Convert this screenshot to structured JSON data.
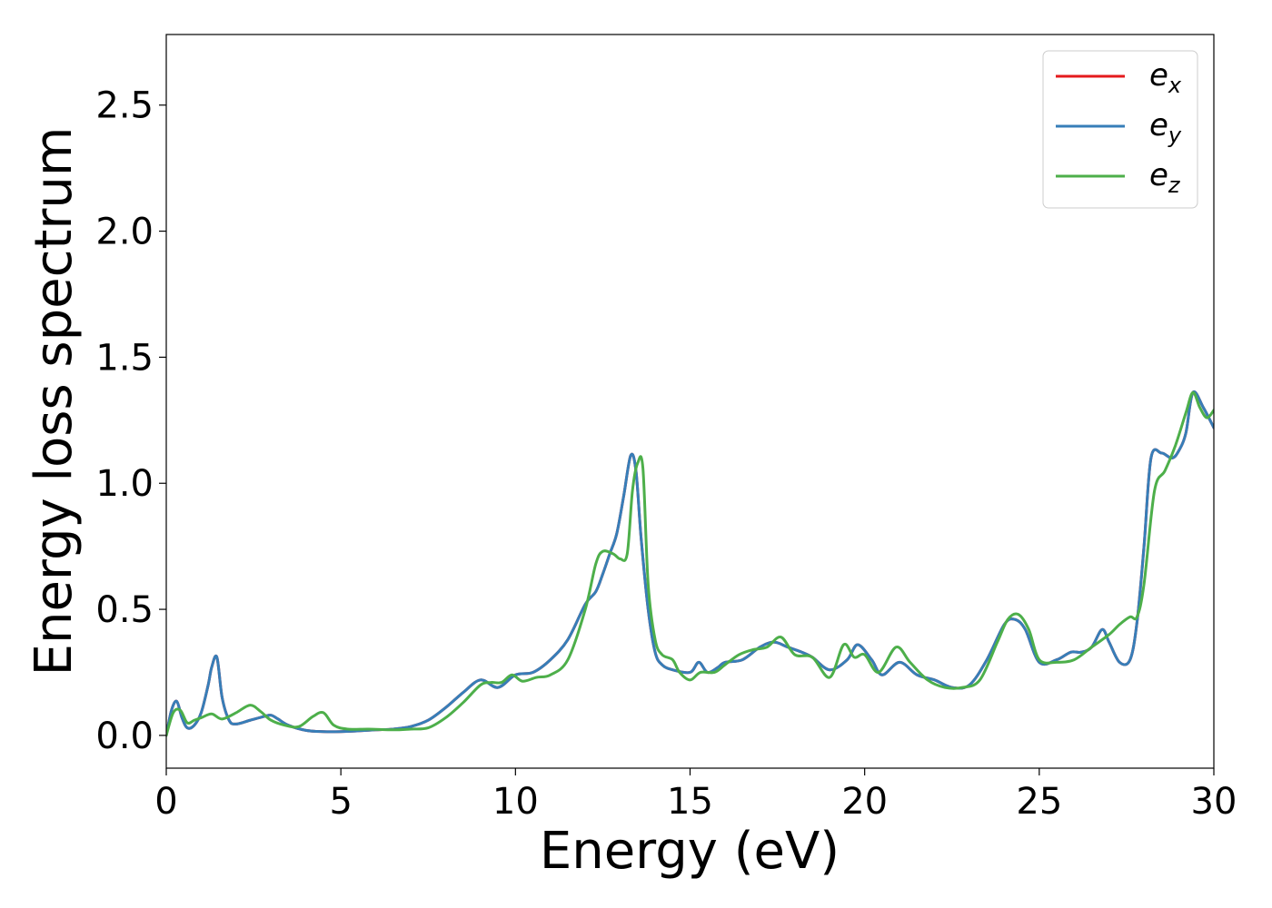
{
  "chart_data": {
    "type": "line",
    "xlabel": "Energy (eV)",
    "ylabel": "Energy loss spectrum",
    "xlim": [
      0,
      30
    ],
    "ylim": [
      -0.13,
      2.78
    ],
    "xticks": [
      0,
      5,
      10,
      15,
      20,
      25,
      30
    ],
    "xtick_labels": [
      "0",
      "5",
      "10",
      "15",
      "20",
      "25",
      "30"
    ],
    "yticks": [
      0.0,
      0.5,
      1.0,
      1.5,
      2.0,
      2.5
    ],
    "ytick_labels": [
      "0.0",
      "0.5",
      "1.0",
      "1.5",
      "2.0",
      "2.5"
    ],
    "grid": false,
    "legend_position": "top-right",
    "series": [
      {
        "name": "e_x",
        "label_base": "e",
        "label_sub": "x",
        "color": "#e41a1c",
        "x": [
          0,
          0.15,
          0.3,
          0.45,
          0.6,
          0.8,
          1.0,
          1.2,
          1.3,
          1.45,
          1.6,
          1.8,
          2.0,
          2.4,
          2.8,
          3.0,
          3.2,
          3.5,
          4.0,
          4.5,
          5.0,
          5.5,
          6.0,
          6.5,
          7.0,
          7.5,
          8.0,
          8.5,
          9.0,
          9.5,
          10.0,
          10.5,
          11.0,
          11.5,
          12.0,
          12.3,
          12.5,
          12.7,
          12.9,
          13.1,
          13.3,
          13.45,
          13.6,
          13.8,
          14.0,
          14.2,
          14.5,
          15.0,
          15.25,
          15.5,
          15.8,
          16.0,
          16.5,
          17.0,
          17.4,
          17.8,
          18.2,
          18.5,
          19.0,
          19.5,
          19.8,
          20.2,
          20.5,
          21.0,
          21.5,
          22.0,
          22.5,
          23.0,
          23.5,
          24.0,
          24.3,
          24.6,
          25.0,
          25.5,
          25.9,
          26.2,
          26.5,
          26.8,
          27.0,
          27.3,
          27.6,
          27.8,
          28.0,
          28.2,
          28.5,
          28.8,
          29.0,
          29.2,
          29.4,
          29.7,
          30.0
        ],
        "y": [
          0.0,
          0.1,
          0.135,
          0.07,
          0.03,
          0.04,
          0.09,
          0.2,
          0.27,
          0.31,
          0.15,
          0.06,
          0.045,
          0.06,
          0.075,
          0.08,
          0.065,
          0.04,
          0.02,
          0.015,
          0.015,
          0.018,
          0.022,
          0.025,
          0.035,
          0.06,
          0.11,
          0.17,
          0.22,
          0.19,
          0.24,
          0.25,
          0.3,
          0.38,
          0.52,
          0.57,
          0.64,
          0.72,
          0.8,
          0.95,
          1.11,
          1.05,
          0.78,
          0.5,
          0.33,
          0.28,
          0.26,
          0.25,
          0.29,
          0.25,
          0.27,
          0.29,
          0.3,
          0.35,
          0.37,
          0.35,
          0.33,
          0.31,
          0.26,
          0.3,
          0.36,
          0.3,
          0.24,
          0.29,
          0.24,
          0.22,
          0.19,
          0.2,
          0.3,
          0.44,
          0.46,
          0.42,
          0.29,
          0.3,
          0.33,
          0.33,
          0.35,
          0.42,
          0.37,
          0.29,
          0.3,
          0.45,
          0.75,
          1.1,
          1.12,
          1.1,
          1.13,
          1.2,
          1.36,
          1.3,
          1.22
        ]
      },
      {
        "name": "e_y",
        "label_base": "e",
        "label_sub": "y",
        "color": "#377eb8",
        "x": [
          0,
          0.15,
          0.3,
          0.45,
          0.6,
          0.8,
          1.0,
          1.2,
          1.3,
          1.45,
          1.6,
          1.8,
          2.0,
          2.4,
          2.8,
          3.0,
          3.2,
          3.5,
          4.0,
          4.5,
          5.0,
          5.5,
          6.0,
          6.5,
          7.0,
          7.5,
          8.0,
          8.5,
          9.0,
          9.5,
          10.0,
          10.5,
          11.0,
          11.5,
          12.0,
          12.3,
          12.5,
          12.7,
          12.9,
          13.1,
          13.3,
          13.45,
          13.6,
          13.8,
          14.0,
          14.2,
          14.5,
          15.0,
          15.25,
          15.5,
          15.8,
          16.0,
          16.5,
          17.0,
          17.4,
          17.8,
          18.2,
          18.5,
          19.0,
          19.5,
          19.8,
          20.2,
          20.5,
          21.0,
          21.5,
          22.0,
          22.5,
          23.0,
          23.5,
          24.0,
          24.3,
          24.6,
          25.0,
          25.5,
          25.9,
          26.2,
          26.5,
          26.8,
          27.0,
          27.3,
          27.6,
          27.8,
          28.0,
          28.2,
          28.5,
          28.8,
          29.0,
          29.2,
          29.4,
          29.7,
          30.0
        ],
        "y": [
          0.0,
          0.1,
          0.135,
          0.07,
          0.03,
          0.04,
          0.09,
          0.2,
          0.27,
          0.31,
          0.15,
          0.06,
          0.045,
          0.06,
          0.075,
          0.08,
          0.065,
          0.04,
          0.02,
          0.015,
          0.015,
          0.018,
          0.022,
          0.025,
          0.035,
          0.06,
          0.11,
          0.17,
          0.22,
          0.19,
          0.24,
          0.25,
          0.3,
          0.38,
          0.52,
          0.57,
          0.64,
          0.72,
          0.8,
          0.95,
          1.11,
          1.05,
          0.78,
          0.5,
          0.33,
          0.28,
          0.26,
          0.25,
          0.29,
          0.25,
          0.27,
          0.29,
          0.3,
          0.35,
          0.37,
          0.35,
          0.33,
          0.31,
          0.26,
          0.3,
          0.36,
          0.3,
          0.24,
          0.29,
          0.24,
          0.22,
          0.19,
          0.2,
          0.3,
          0.44,
          0.46,
          0.42,
          0.29,
          0.3,
          0.33,
          0.33,
          0.35,
          0.42,
          0.37,
          0.29,
          0.3,
          0.45,
          0.75,
          1.1,
          1.12,
          1.1,
          1.13,
          1.2,
          1.36,
          1.3,
          1.22
        ]
      },
      {
        "name": "e_z",
        "label_base": "e",
        "label_sub": "z",
        "color": "#4daf4a",
        "x": [
          0,
          0.2,
          0.4,
          0.6,
          0.8,
          1.0,
          1.3,
          1.6,
          2.0,
          2.4,
          2.7,
          3.0,
          3.4,
          3.8,
          4.2,
          4.5,
          4.8,
          5.2,
          5.8,
          6.5,
          7.0,
          7.5,
          8.0,
          8.5,
          9.0,
          9.3,
          9.6,
          9.9,
          10.2,
          10.6,
          11.0,
          11.5,
          12.0,
          12.3,
          12.5,
          12.8,
          13.0,
          13.2,
          13.35,
          13.5,
          13.65,
          13.8,
          14.0,
          14.2,
          14.5,
          14.7,
          15.0,
          15.3,
          15.7,
          16.0,
          16.4,
          16.8,
          17.2,
          17.6,
          18.0,
          18.5,
          19.0,
          19.4,
          19.7,
          20.0,
          20.4,
          20.9,
          21.3,
          21.8,
          22.3,
          22.8,
          23.3,
          23.8,
          24.1,
          24.4,
          24.7,
          25.0,
          25.5,
          26.0,
          26.5,
          27.0,
          27.3,
          27.6,
          27.8,
          28.0,
          28.3,
          28.6,
          28.9,
          29.2,
          29.4,
          29.6,
          29.8,
          30.0
        ],
        "y": [
          0.0,
          0.09,
          0.1,
          0.05,
          0.06,
          0.07,
          0.085,
          0.065,
          0.09,
          0.12,
          0.095,
          0.06,
          0.04,
          0.035,
          0.075,
          0.09,
          0.04,
          0.025,
          0.025,
          0.022,
          0.025,
          0.03,
          0.07,
          0.13,
          0.2,
          0.21,
          0.21,
          0.24,
          0.215,
          0.23,
          0.24,
          0.3,
          0.5,
          0.68,
          0.73,
          0.72,
          0.7,
          0.72,
          0.97,
          1.08,
          1.06,
          0.6,
          0.38,
          0.32,
          0.3,
          0.25,
          0.22,
          0.25,
          0.25,
          0.28,
          0.32,
          0.34,
          0.35,
          0.39,
          0.32,
          0.31,
          0.23,
          0.36,
          0.31,
          0.32,
          0.25,
          0.35,
          0.29,
          0.22,
          0.19,
          0.19,
          0.22,
          0.37,
          0.46,
          0.48,
          0.42,
          0.3,
          0.29,
          0.3,
          0.35,
          0.4,
          0.44,
          0.47,
          0.47,
          0.6,
          0.97,
          1.05,
          1.15,
          1.28,
          1.36,
          1.3,
          1.26,
          1.29
        ]
      }
    ]
  }
}
